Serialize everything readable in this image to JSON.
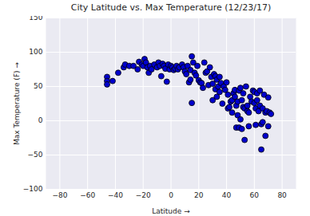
{
  "chart_data": {
    "type": "scatter",
    "title": "City Latitude vs. Max Temperature (12/23/17)",
    "x_label": "Latitude",
    "y_label": "Max Temperature (F)",
    "x": [
      -46,
      -46,
      -46,
      -42,
      -38,
      -34,
      -33,
      -30,
      -27,
      -24,
      -23,
      -21,
      -20,
      -19,
      -18,
      -17,
      -16,
      -15,
      -14,
      -12,
      -10,
      -9,
      -8,
      -7,
      -6,
      -5,
      -4,
      -3,
      -2,
      -1,
      0,
      1,
      2,
      3,
      4,
      5,
      6,
      8,
      9,
      10,
      11,
      12,
      13,
      14,
      14,
      15,
      15,
      16,
      17,
      18,
      19,
      20,
      21,
      22,
      23,
      24,
      25,
      26,
      27,
      28,
      29,
      30,
      30,
      31,
      32,
      32,
      33,
      33,
      34,
      35,
      35,
      36,
      37,
      38,
      39,
      40,
      41,
      41,
      42,
      43,
      44,
      44,
      45,
      46,
      46,
      47,
      47,
      48,
      48,
      49,
      49,
      50,
      50,
      51,
      51,
      52,
      52,
      53,
      53,
      54,
      55,
      55,
      56,
      56,
      57,
      58,
      59,
      60,
      60,
      61,
      61,
      62,
      62,
      63,
      64,
      64,
      65,
      65,
      66,
      66,
      67,
      68,
      68,
      69,
      70,
      70,
      71,
      72
    ],
    "values": [
      64,
      58,
      53,
      58,
      70,
      78,
      82,
      80,
      80,
      75,
      86,
      82,
      80,
      90,
      85,
      78,
      70,
      80,
      75,
      82,
      78,
      85,
      80,
      65,
      83,
      80,
      76,
      57,
      82,
      75,
      80,
      78,
      74,
      76,
      80,
      75,
      78,
      82,
      78,
      72,
      68,
      80,
      56,
      60,
      74,
      94,
      26,
      85,
      70,
      66,
      80,
      59,
      56,
      55,
      48,
      85,
      70,
      72,
      52,
      78,
      64,
      54,
      30,
      68,
      65,
      46,
      35,
      60,
      50,
      64,
      42,
      55,
      25,
      50,
      45,
      56,
      18,
      38,
      20,
      28,
      30,
      12,
      40,
      35,
      45,
      22,
      -10,
      28,
      8,
      44,
      -10,
      48,
      2,
      -12,
      30,
      20,
      40,
      -28,
      18,
      50,
      14,
      22,
      12,
      -8,
      35,
      28,
      44,
      26,
      42,
      18,
      -6,
      40,
      30,
      14,
      44,
      22,
      -42,
      -5,
      18,
      -2,
      38,
      -22,
      12,
      14,
      -8,
      34,
      12,
      10
    ],
    "color": "#0000cd",
    "xlim": [
      -90,
      90
    ],
    "xticks": [
      -80,
      -60,
      -40,
      -20,
      0,
      20,
      40,
      60,
      80
    ],
    "ylim": [
      -100,
      150
    ],
    "yticks": [
      -100,
      -50,
      0,
      50,
      100,
      150
    ],
    "grid": true
  }
}
